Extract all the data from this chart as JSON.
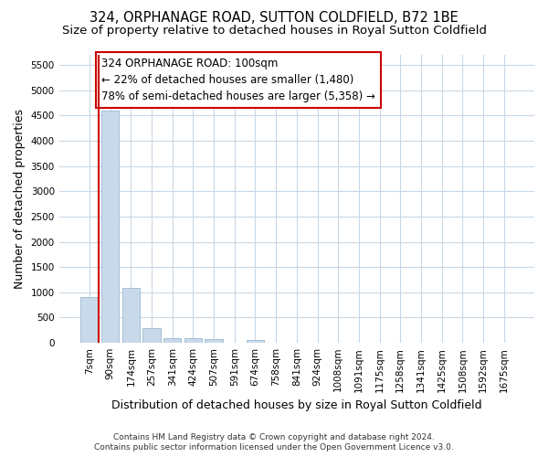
{
  "title": "324, ORPHANAGE ROAD, SUTTON COLDFIELD, B72 1BE",
  "subtitle": "Size of property relative to detached houses in Royal Sutton Coldfield",
  "xlabel": "Distribution of detached houses by size in Royal Sutton Coldfield",
  "ylabel": "Number of detached properties",
  "footer_line1": "Contains HM Land Registry data © Crown copyright and database right 2024.",
  "footer_line2": "Contains public sector information licensed under the Open Government Licence v3.0.",
  "categories": [
    "7sqm",
    "90sqm",
    "174sqm",
    "257sqm",
    "341sqm",
    "424sqm",
    "507sqm",
    "591sqm",
    "674sqm",
    "758sqm",
    "841sqm",
    "924sqm",
    "1008sqm",
    "1091sqm",
    "1175sqm",
    "1258sqm",
    "1341sqm",
    "1425sqm",
    "1508sqm",
    "1592sqm",
    "1675sqm"
  ],
  "values": [
    900,
    4600,
    1080,
    285,
    90,
    85,
    80,
    0,
    55,
    0,
    0,
    0,
    0,
    0,
    0,
    0,
    0,
    0,
    0,
    0,
    0
  ],
  "bar_color": "#c8daea",
  "bar_edge_color": "#9ab8d0",
  "ylim": [
    0,
    5700
  ],
  "yticks": [
    0,
    500,
    1000,
    1500,
    2000,
    2500,
    3000,
    3500,
    4000,
    4500,
    5000,
    5500
  ],
  "annotation_text_line1": "324 ORPHANAGE ROAD: 100sqm",
  "annotation_text_line2": "← 22% of detached houses are smaller (1,480)",
  "annotation_text_line3": "78% of semi-detached houses are larger (5,358) →",
  "red_line_color": "#cc0000",
  "annotation_box_color": "#ffffff",
  "annotation_box_edge_color": "#cc0000",
  "background_color": "#ffffff",
  "grid_color": "#c8d8e8",
  "title_fontsize": 10.5,
  "subtitle_fontsize": 9.5,
  "axis_label_fontsize": 9,
  "tick_fontsize": 7.5,
  "annotation_fontsize": 8.5
}
